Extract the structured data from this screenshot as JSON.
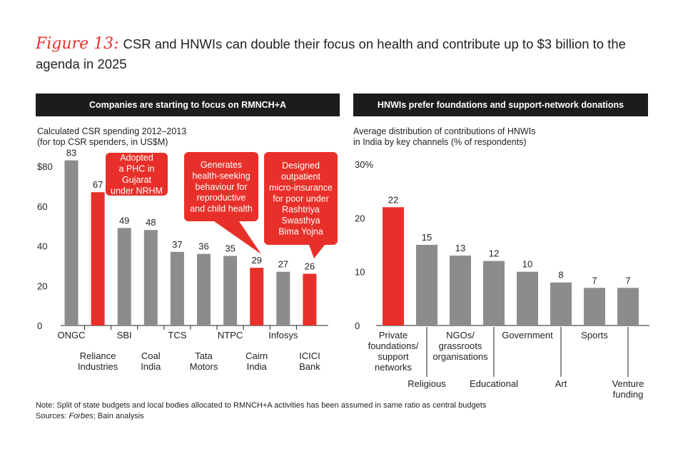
{
  "figure": {
    "label": "Figure 13:",
    "title": "CSR and HNWIs can double their focus on health and contribute up to $3 billion to the agenda in 2025"
  },
  "colors": {
    "highlight": "#e8302a",
    "bar": "#8c8c8c",
    "header": "#1c1c1c"
  },
  "chart_data": [
    {
      "type": "bar",
      "header": "Companies are starting  to focus on RMNCH+A",
      "subtitle_lines": [
        "Calculated CSR spending 2012–2013",
        "(for top CSR spenders, in US$M)"
      ],
      "categories": [
        "ONGC",
        "Reliance Industries",
        "SBI",
        "Coal India",
        "TCS",
        "Tata Motors",
        "NTPC",
        "Cairn India",
        "Infosys",
        "ICICI Bank"
      ],
      "category_label_lines": [
        [
          "ONGC"
        ],
        [
          "Reliance",
          "Industries"
        ],
        [
          "SBI"
        ],
        [
          "Coal",
          "India"
        ],
        [
          "TCS"
        ],
        [
          "Tata",
          "Motors"
        ],
        [
          "NTPC"
        ],
        [
          "Cairn",
          "India"
        ],
        [
          "Infosys"
        ],
        [
          "ICICI",
          "Bank"
        ]
      ],
      "values": [
        83,
        67,
        49,
        48,
        37,
        36,
        35,
        29,
        27,
        26
      ],
      "highlighted": [
        false,
        true,
        false,
        false,
        false,
        false,
        false,
        true,
        false,
        true
      ],
      "yticks": [
        "0",
        "20",
        "40",
        "60",
        "$80"
      ],
      "ylim": [
        0,
        80
      ],
      "callouts": [
        {
          "bar_index": 1,
          "lines": [
            "Adopted",
            "a PHC in",
            "Gujarat",
            "under NRHM"
          ]
        },
        {
          "bar_index": 7,
          "lines": [
            "Generates",
            "health-seeking",
            "behaviour for",
            "reproductive",
            "and child health"
          ]
        },
        {
          "bar_index": 9,
          "lines": [
            "Designed",
            "outpatient",
            "micro-insurance",
            "for poor under",
            "Rashtriya",
            "Swasthya",
            "Bima Yojna"
          ]
        }
      ]
    },
    {
      "type": "bar",
      "header": "HNWIs prefer foundations and support-network donations",
      "subtitle_lines": [
        "Average distribution of contributions of HNWIs",
        "in India by key channels (% of respondents)"
      ],
      "categories": [
        "Private foundations/ support networks",
        "Religious",
        "NGOs/ grassroots organisations",
        "Educational",
        "Government",
        "Art",
        "Sports",
        "Venture funding"
      ],
      "category_label_lines": [
        [
          "Private",
          "foundations/",
          "support",
          "networks"
        ],
        [
          "Religious"
        ],
        [
          "NGOs/",
          "grassroots",
          "organisations"
        ],
        [
          "Educational"
        ],
        [
          "Government"
        ],
        [
          "Art"
        ],
        [
          "Sports"
        ],
        [
          "Venture",
          "funding"
        ]
      ],
      "values": [
        22,
        15,
        13,
        12,
        10,
        8,
        7,
        7
      ],
      "highlighted": [
        true,
        false,
        false,
        false,
        false,
        false,
        false,
        false
      ],
      "yticks": [
        "0",
        "10",
        "20",
        "30%"
      ],
      "ylim": [
        0,
        30
      ]
    }
  ],
  "footer": {
    "note": "Note: Split of state budgets and local bodies allocated to RMNCH+A activities has been assumed in same ratio as central budgets",
    "sources_prefix": "Sources: ",
    "sources_italic": "Forbes",
    "sources_suffix": "; Bain analysis"
  }
}
